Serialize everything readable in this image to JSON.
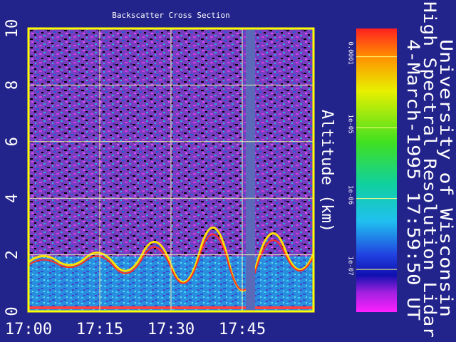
{
  "chart_data": {
    "type": "heatmap",
    "title": "Backscatter Cross Section",
    "ylabel": "Altitude (km)",
    "xlim": [
      1020,
      1080
    ],
    "xticks": [
      {
        "value": 1020,
        "label": "17:00"
      },
      {
        "value": 1035,
        "label": "17:15"
      },
      {
        "value": 1050,
        "label": "17:30"
      },
      {
        "value": 1065,
        "label": "17:45"
      }
    ],
    "ylim": [
      0,
      10
    ],
    "yticks": [
      0,
      2,
      4,
      6,
      8,
      10
    ],
    "grid": true,
    "colorbar": {
      "scale": "log",
      "lim": [
        2.5e-08,
        0.00025
      ],
      "ticks": [
        0.0001,
        {
          "value": 1e-05,
          "label": "1e-05"
        },
        {
          "value": 1e-06,
          "label": "1e-06"
        },
        {
          "value": 1e-07,
          "label": "1e-07"
        }
      ]
    },
    "annotations": [
      "University of Wisconsin",
      "High Spectral Resolution Lidar",
      "4-March-1995 17:59:50 UT"
    ]
  }
}
